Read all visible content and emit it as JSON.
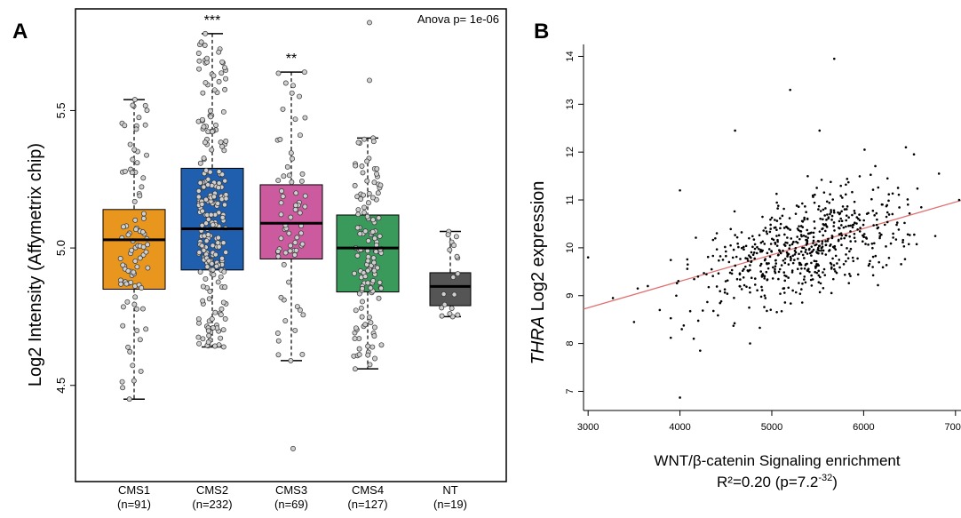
{
  "panels": {
    "a_label": "A",
    "b_label": "B"
  },
  "chart_data": [
    {
      "type": "box",
      "panel": "A",
      "ylabel": "Log2 Intensity (Affymetrix chip)",
      "xlabel": "",
      "ylim": [
        4.15,
        5.87
      ],
      "yticks": [
        4.5,
        5.0,
        5.5
      ],
      "ytick_labels": [
        "4.5",
        "5.0",
        "5.5"
      ],
      "grid": false,
      "annotation": "Anova p= 1e-06",
      "groups": [
        {
          "name": "CMS1",
          "n_label": "(n=91)",
          "n": 91,
          "color": "#E8961E",
          "whisker_low": 4.45,
          "q1": 4.85,
          "median": 5.03,
          "q3": 5.14,
          "whisker_high": 5.54,
          "outliers": [],
          "significance": ""
        },
        {
          "name": "CMS2",
          "n_label": "(n=232)",
          "n": 232,
          "color": "#1F5FAD",
          "whisker_low": 4.64,
          "q1": 4.92,
          "median": 5.07,
          "q3": 5.29,
          "whisker_high": 5.78,
          "outliers": [],
          "significance": "***"
        },
        {
          "name": "CMS3",
          "n_label": "(n=69)",
          "n": 69,
          "color": "#CC5A9E",
          "whisker_low": 4.59,
          "q1": 4.96,
          "median": 5.09,
          "q3": 5.23,
          "whisker_high": 5.64,
          "outliers": [
            4.27
          ],
          "significance": "**"
        },
        {
          "name": "CMS4",
          "n_label": "(n=127)",
          "n": 127,
          "color": "#3A9A5B",
          "whisker_low": 4.56,
          "q1": 4.84,
          "median": 5.0,
          "q3": 5.12,
          "whisker_high": 5.4,
          "outliers": [
            5.61,
            5.82
          ],
          "significance": ""
        },
        {
          "name": "NT",
          "n_label": "(n=19)",
          "n": 19,
          "color": "#555555",
          "whisker_low": 4.75,
          "q1": 4.79,
          "median": 4.86,
          "q3": 4.91,
          "whisker_high": 5.06,
          "outliers": [],
          "significance": ""
        }
      ]
    },
    {
      "type": "scatter",
      "panel": "B",
      "ylabel_italic": "THRA",
      "ylabel_rest": " Log2 expression",
      "xlabel": "WNT/β-catenin Signaling enrichment",
      "stat_label": "R²=0.20 (p=7.2",
      "stat_exp": "-32",
      "stat_close": ")",
      "xlim": [
        2950,
        7060
      ],
      "ylim": [
        6.6,
        14.25
      ],
      "xticks": [
        3000,
        4000,
        5000,
        6000,
        7000
      ],
      "xtick_labels": [
        "3000",
        "4000",
        "5000",
        "6000",
        "7000"
      ],
      "yticks": [
        7,
        8,
        9,
        10,
        11,
        12,
        13,
        14
      ],
      "ytick_labels": [
        "7",
        "8",
        "9",
        "10",
        "11",
        "12",
        "13",
        "14"
      ],
      "grid": false,
      "n_points": 640,
      "fit_line": {
        "x": [
          2950,
          7060
        ],
        "y": [
          8.72,
          10.99
        ],
        "color": "#E07070"
      },
      "points": [
        [
          3000,
          9.8
        ],
        [
          3270,
          8.95
        ],
        [
          3500,
          8.45
        ],
        [
          3540,
          9.15
        ],
        [
          3650,
          9.2
        ],
        [
          3780,
          8.7
        ],
        [
          3960,
          9.0
        ],
        [
          4000,
          11.2
        ],
        [
          4000,
          6.87
        ],
        [
          4020,
          8.3
        ],
        [
          4150,
          8.1
        ],
        [
          4220,
          7.85
        ],
        [
          4600,
          12.45
        ],
        [
          5200,
          13.3
        ],
        [
          5520,
          12.45
        ],
        [
          5680,
          13.95
        ],
        [
          6010,
          12.05
        ],
        [
          6460,
          12.1
        ],
        [
          6820,
          11.55
        ],
        [
          7040,
          11.0
        ]
      ]
    }
  ]
}
